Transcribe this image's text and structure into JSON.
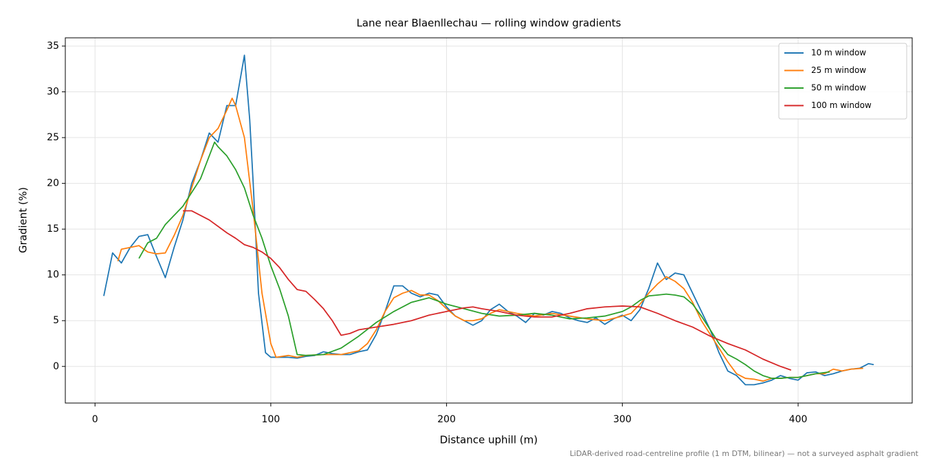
{
  "chart_data": {
    "type": "line",
    "title": "Lane near Blaenllechau — rolling window gradients",
    "xlabel": "Distance uphill (m)",
    "ylabel": "Gradient (%)",
    "footnote": "LiDAR-derived road-centreline profile (1 m DTM, bilinear) — not a surveyed asphalt gradient",
    "xlim": [
      -16.9,
      464.9
    ],
    "ylim": [
      -4.0,
      35.9
    ],
    "xticks": [
      0,
      100,
      200,
      300,
      400
    ],
    "yticks": [
      0,
      5,
      10,
      15,
      20,
      25,
      30,
      35
    ],
    "grid": true,
    "legend": "upper right",
    "series": [
      {
        "name": "10 m window",
        "color": "#1f77b4",
        "x": [
          5,
          10,
          15,
          20,
          25,
          30,
          35,
          40,
          45,
          50,
          55,
          60,
          65,
          70,
          75,
          80,
          85,
          88,
          90,
          93,
          97,
          100,
          105,
          110,
          115,
          120,
          125,
          130,
          135,
          140,
          145,
          150,
          155,
          160,
          165,
          170,
          175,
          180,
          185,
          190,
          195,
          200,
          205,
          210,
          215,
          220,
          225,
          230,
          235,
          240,
          245,
          250,
          255,
          260,
          265,
          270,
          275,
          280,
          285,
          290,
          295,
          300,
          305,
          310,
          315,
          320,
          325,
          330,
          335,
          340,
          345,
          350,
          355,
          360,
          365,
          370,
          375,
          380,
          385,
          390,
          395,
          400,
          405,
          410,
          415,
          420,
          425,
          430,
          435,
          440,
          443
        ],
        "values": [
          7.7,
          12.4,
          11.3,
          13.0,
          14.2,
          14.4,
          12.0,
          9.7,
          13.0,
          16.0,
          20.0,
          22.5,
          25.5,
          24.5,
          28.5,
          28.5,
          34.0,
          27,
          20,
          8,
          1.5,
          1.0,
          1.0,
          1.0,
          0.9,
          1.1,
          1.2,
          1.6,
          1.4,
          1.3,
          1.3,
          1.6,
          1.8,
          3.5,
          6.0,
          8.8,
          8.8,
          8.0,
          7.6,
          8.0,
          7.8,
          6.5,
          5.5,
          5.0,
          4.5,
          5.0,
          6.2,
          6.8,
          6.0,
          5.5,
          4.8,
          5.8,
          5.6,
          6.0,
          5.8,
          5.3,
          5.0,
          4.8,
          5.3,
          4.6,
          5.2,
          5.6,
          5.0,
          6.2,
          8.5,
          11.3,
          9.5,
          10.2,
          10.0,
          8.0,
          6.0,
          4.0,
          1.5,
          -0.5,
          -1.0,
          -2.0,
          -2.0,
          -1.8,
          -1.5,
          -1.0,
          -1.3,
          -1.5,
          -0.7,
          -0.6,
          -1.0,
          -0.8,
          -0.5,
          -0.3,
          -0.2,
          0.3,
          0.2
        ]
      },
      {
        "name": "25 m window",
        "color": "#ff7f0e",
        "x": [
          13,
          15,
          20,
          25,
          30,
          35,
          40,
          45,
          50,
          55,
          60,
          65,
          70,
          75,
          78,
          80,
          85,
          90,
          95,
          100,
          103,
          110,
          115,
          120,
          130,
          140,
          150,
          155,
          160,
          165,
          170,
          175,
          180,
          185,
          190,
          195,
          200,
          205,
          210,
          215,
          220,
          225,
          230,
          240,
          250,
          260,
          270,
          280,
          290,
          300,
          305,
          310,
          315,
          320,
          325,
          330,
          335,
          340,
          345,
          350,
          355,
          360,
          365,
          370,
          375,
          380,
          385,
          390,
          395,
          400,
          405,
          410,
          415,
          420,
          425,
          430,
          437
        ],
        "values": [
          11.5,
          12.8,
          13.0,
          13.2,
          12.5,
          12.3,
          12.4,
          14.3,
          16.5,
          19.5,
          22.5,
          25.0,
          26.0,
          28.0,
          29.3,
          28.5,
          25,
          17,
          8,
          2.5,
          1.0,
          1.2,
          1.0,
          1.2,
          1.3,
          1.3,
          1.7,
          2.5,
          4.0,
          6.0,
          7.5,
          8.0,
          8.3,
          7.8,
          7.8,
          7.2,
          6.3,
          5.5,
          5.0,
          5.0,
          5.2,
          5.8,
          6.2,
          5.8,
          5.5,
          5.8,
          5.5,
          5.2,
          5.0,
          5.5,
          5.8,
          6.8,
          8.0,
          9.0,
          9.8,
          9.3,
          8.5,
          7.0,
          5.0,
          3.5,
          2.0,
          0.5,
          -0.8,
          -1.3,
          -1.4,
          -1.6,
          -1.3,
          -1.3,
          -1.2,
          -1.2,
          -1.0,
          -0.8,
          -0.8,
          -0.3,
          -0.5,
          -0.3,
          -0.2
        ]
      },
      {
        "name": "50 m window",
        "color": "#2ca02c",
        "x": [
          25,
          30,
          35,
          40,
          45,
          50,
          55,
          60,
          65,
          68,
          70,
          75,
          80,
          85,
          90,
          95,
          100,
          105,
          110,
          115,
          120,
          130,
          140,
          150,
          160,
          170,
          180,
          190,
          200,
          210,
          220,
          230,
          240,
          250,
          260,
          270,
          280,
          290,
          300,
          305,
          310,
          315,
          320,
          325,
          330,
          335,
          340,
          345,
          350,
          355,
          360,
          365,
          370,
          375,
          380,
          385,
          390,
          395,
          400,
          405,
          410,
          418
        ],
        "values": [
          11.8,
          13.5,
          14.0,
          15.5,
          16.5,
          17.5,
          19.0,
          20.5,
          23.0,
          24.5,
          24.0,
          23.0,
          21.5,
          19.5,
          16.5,
          14.0,
          11.0,
          8.5,
          5.5,
          1.3,
          1.2,
          1.3,
          2.0,
          3.3,
          4.8,
          6.0,
          7.0,
          7.5,
          6.8,
          6.3,
          5.8,
          5.5,
          5.6,
          5.8,
          5.6,
          5.2,
          5.3,
          5.5,
          6.0,
          6.5,
          7.2,
          7.7,
          7.8,
          7.9,
          7.8,
          7.6,
          6.8,
          5.5,
          4.0,
          2.5,
          1.3,
          0.8,
          0.2,
          -0.5,
          -1.0,
          -1.3,
          -1.3,
          -1.2,
          -1.2,
          -1.0,
          -0.8,
          -0.6
        ]
      },
      {
        "name": "100 m window",
        "color": "#d62728",
        "x": [
          50,
          55,
          60,
          65,
          70,
          75,
          80,
          85,
          90,
          95,
          100,
          105,
          110,
          115,
          120,
          125,
          130,
          135,
          140,
          145,
          150,
          160,
          170,
          180,
          190,
          200,
          210,
          215,
          220,
          230,
          240,
          250,
          260,
          270,
          280,
          290,
          300,
          310,
          320,
          330,
          340,
          350,
          360,
          370,
          380,
          390,
          396
        ],
        "values": [
          17.0,
          17.0,
          16.5,
          16.0,
          15.3,
          14.6,
          14.0,
          13.3,
          13.0,
          12.5,
          11.8,
          10.8,
          9.5,
          8.4,
          8.2,
          7.3,
          6.3,
          5.0,
          3.4,
          3.6,
          4.0,
          4.3,
          4.6,
          5.0,
          5.6,
          6.0,
          6.4,
          6.5,
          6.3,
          6.0,
          5.6,
          5.4,
          5.4,
          5.8,
          6.3,
          6.5,
          6.6,
          6.5,
          5.8,
          5.0,
          4.3,
          3.3,
          2.5,
          1.8,
          0.8,
          0,
          -0.4
        ]
      }
    ]
  }
}
